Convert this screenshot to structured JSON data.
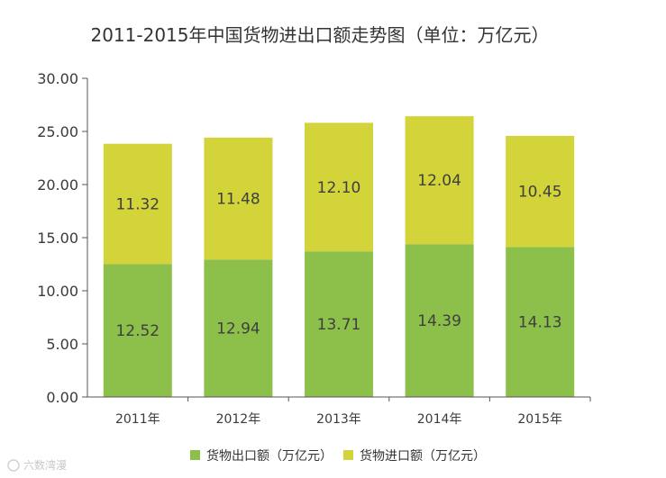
{
  "chart_data": {
    "type": "bar",
    "stacked": true,
    "title": "2011-2015年中国货物进出口额走势图（单位：万亿元）",
    "categories": [
      "2011年",
      "2012年",
      "2013年",
      "2014年",
      "2015年"
    ],
    "series": [
      {
        "name": "货物出口额（万亿元）",
        "color": "#8cc04a",
        "values": [
          12.52,
          12.94,
          13.71,
          14.39,
          14.13
        ]
      },
      {
        "name": "货物进口额（万亿元）",
        "color": "#d2d43a",
        "values": [
          11.32,
          11.48,
          12.1,
          12.04,
          10.45
        ]
      }
    ],
    "value_labels": {
      "export": [
        "12.52",
        "12.94",
        "13.71",
        "14.39",
        "14.13"
      ],
      "import": [
        "11.32",
        "11.48",
        "12.10",
        "12.04",
        "10.45"
      ]
    },
    "ylim": [
      0,
      30
    ],
    "yticks": [
      "0.00",
      "5.00",
      "10.00",
      "15.00",
      "20.00",
      "25.00",
      "30.00"
    ],
    "xlabel": "",
    "ylabel": "",
    "legend_position": "bottom",
    "grid": false
  },
  "watermark": "六数湾漫"
}
